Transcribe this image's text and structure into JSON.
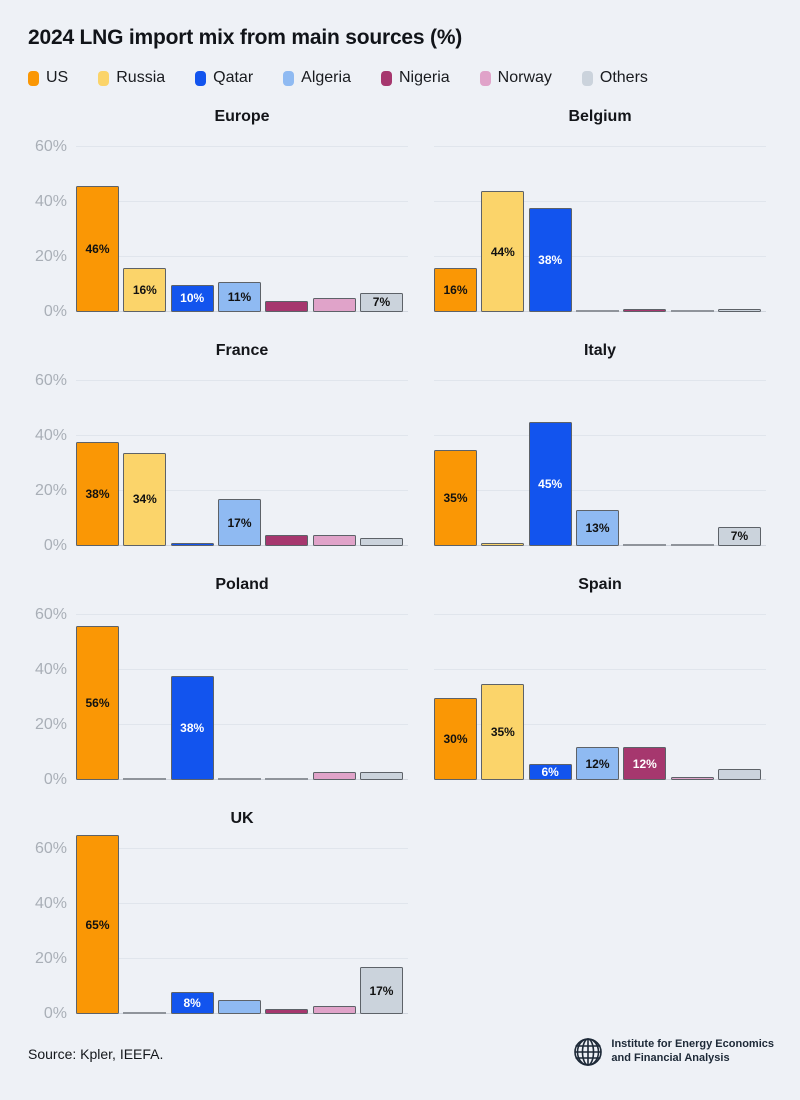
{
  "header": {
    "title": "2024 LNG import mix from main sources (%)"
  },
  "legend": {
    "items": [
      {
        "label": "US",
        "color": "#FA9705"
      },
      {
        "label": "Russia",
        "color": "#FBD46A"
      },
      {
        "label": "Qatar",
        "color": "#1254EE"
      },
      {
        "label": "Algeria",
        "color": "#8FBAF2"
      },
      {
        "label": "Nigeria",
        "color": "#A6376E"
      },
      {
        "label": "Norway",
        "color": "#E0A3C9"
      },
      {
        "label": "Others",
        "color": "#CBD3DC"
      }
    ]
  },
  "chart_data": {
    "type": "bar",
    "title": "2024 LNG import mix from main sources (%)",
    "categories": [
      "US",
      "Russia",
      "Qatar",
      "Algeria",
      "Nigeria",
      "Norway",
      "Others"
    ],
    "palette": [
      "#FA9705",
      "#FBD46A",
      "#1254EE",
      "#8FBAF2",
      "#A6376E",
      "#E0A3C9",
      "#CBD3DC"
    ],
    "label_text_colors": [
      "#111111",
      "#111111",
      "#ffffff",
      "#111111",
      "#ffffff",
      "#111111",
      "#111111"
    ],
    "ylim": [
      0,
      60
    ],
    "yticks": [
      {
        "value": 0,
        "label": "0%"
      },
      {
        "value": 20,
        "label": "20%"
      },
      {
        "value": 40,
        "label": "40%"
      },
      {
        "value": 60,
        "label": "60%"
      }
    ],
    "grid": true,
    "legend_position": "top",
    "charts": [
      {
        "title": "Europe",
        "show_y_axis": true,
        "values": [
          46,
          16,
          10,
          11,
          4,
          5,
          7
        ],
        "labels": [
          "46%",
          "16%",
          "10%",
          "11%",
          "",
          "",
          "7%"
        ]
      },
      {
        "title": "Belgium",
        "show_y_axis": false,
        "values": [
          16,
          44,
          38,
          0,
          1,
          0,
          1
        ],
        "labels": [
          "16%",
          "44%",
          "38%",
          "",
          "",
          "",
          ""
        ]
      },
      {
        "title": "France",
        "show_y_axis": true,
        "values": [
          38,
          34,
          1,
          17,
          4,
          4,
          3
        ],
        "labels": [
          "38%",
          "34%",
          "",
          "17%",
          "",
          "",
          ""
        ]
      },
      {
        "title": "Italy",
        "show_y_axis": false,
        "values": [
          35,
          1,
          45,
          13,
          0,
          0,
          7
        ],
        "labels": [
          "35%",
          "",
          "45%",
          "13%",
          "",
          "",
          "7%"
        ]
      },
      {
        "title": "Poland",
        "show_y_axis": true,
        "values": [
          56,
          0,
          38,
          0,
          0,
          3,
          3
        ],
        "labels": [
          "56%",
          "",
          "38%",
          "",
          "",
          "",
          ""
        ]
      },
      {
        "title": "Spain",
        "show_y_axis": false,
        "values": [
          30,
          35,
          6,
          12,
          12,
          1,
          4
        ],
        "labels": [
          "30%",
          "35%",
          "6%",
          "12%",
          "12%",
          "",
          ""
        ]
      },
      {
        "title": "UK",
        "show_y_axis": true,
        "values": [
          65,
          0,
          8,
          5,
          2,
          3,
          17
        ],
        "labels": [
          "65%",
          "",
          "8%",
          "",
          "",
          "",
          "17%"
        ]
      }
    ]
  },
  "footer": {
    "source": "Source: Kpler, IEEFA.",
    "logo_line1": "Institute for Energy Economics",
    "logo_line2": "and Financial Analysis"
  }
}
